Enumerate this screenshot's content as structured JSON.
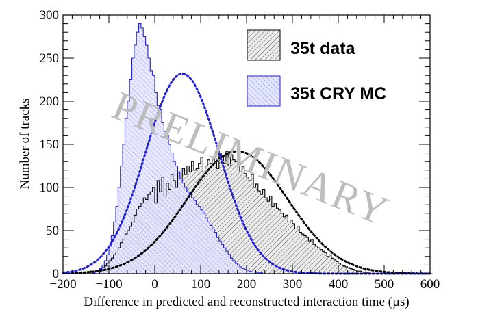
{
  "chart_data": {
    "type": "histogram",
    "xlabel": "Difference in predicted and reconstructed interaction time (µs)",
    "ylabel": "Number of tracks",
    "xlim": [
      -200,
      600
    ],
    "ylim": [
      0,
      300
    ],
    "x_ticks": [
      -200,
      -100,
      0,
      100,
      200,
      300,
      400,
      500,
      600
    ],
    "x_tick_labels": [
      "−200",
      "−100",
      "0",
      "100",
      "200",
      "300",
      "400",
      "500",
      "600"
    ],
    "y_ticks": [
      0,
      50,
      100,
      150,
      200,
      250,
      300
    ],
    "bin_start": -200,
    "bin_width": 5,
    "watermark": "PRELIMINARY",
    "legend": {
      "position": "top-right",
      "entries": [
        "35t data",
        "35t CRY MC"
      ]
    },
    "colors": {
      "data": "#000000",
      "mc": "#1f1fd6",
      "mc_fill": "#dfe0ff",
      "data_fill": "#d9d9d9"
    },
    "series": [
      {
        "name": "35t data",
        "values": [
          0,
          0,
          0,
          0,
          0,
          0,
          0,
          0,
          0,
          0,
          0,
          0,
          0,
          1,
          2,
          3,
          5,
          7,
          9,
          12,
          15,
          18,
          22,
          25,
          30,
          36,
          40,
          46,
          50,
          55,
          60,
          68,
          75,
          78,
          82,
          88,
          86,
          92,
          95,
          100,
          82,
          108,
          95,
          112,
          90,
          105,
          98,
          115,
          108,
          100,
          118,
          110,
          122,
          115,
          125,
          118,
          130,
          120,
          122,
          128,
          135,
          118,
          125,
          132,
          128,
          135,
          130,
          122,
          140,
          135,
          128,
          142,
          125,
          138,
          132,
          130,
          128,
          118,
          124,
          116,
          112,
          108,
          115,
          100,
          104,
          96,
          92,
          98,
          88,
          84,
          90,
          78,
          82,
          76,
          74,
          70,
          66,
          68,
          60,
          62,
          58,
          52,
          55,
          48,
          46,
          44,
          42,
          38,
          40,
          34,
          32,
          30,
          28,
          26,
          24,
          20,
          22,
          18,
          16,
          14,
          12,
          10,
          9,
          8,
          7,
          6,
          5,
          4,
          3,
          3,
          2,
          1,
          1,
          1,
          0,
          0,
          0,
          0,
          0,
          0,
          0,
          0,
          0,
          0,
          0,
          0,
          0,
          0,
          0,
          0,
          0,
          0,
          0,
          0,
          0,
          0,
          0,
          0,
          0,
          0,
          0
        ],
        "fit": {
          "mean": 180,
          "sigma": 110,
          "amplitude": 142
        }
      },
      {
        "name": "35t CRY MC",
        "values": [
          0,
          0,
          0,
          0,
          0,
          0,
          0,
          0,
          0,
          0,
          0,
          0,
          0,
          1,
          2,
          4,
          6,
          10,
          15,
          22,
          32,
          44,
          60,
          78,
          100,
          125,
          150,
          180,
          200,
          225,
          250,
          265,
          280,
          290,
          285,
          275,
          265,
          250,
          235,
          230,
          210,
          195,
          190,
          175,
          165,
          160,
          150,
          140,
          130,
          125,
          118,
          110,
          105,
          100,
          95,
          92,
          88,
          85,
          80,
          78,
          74,
          70,
          65,
          60,
          56,
          52,
          48,
          42,
          38,
          34,
          30,
          26,
          22,
          18,
          15,
          12,
          10,
          8,
          6,
          5,
          4,
          3,
          2,
          2,
          1,
          1,
          1,
          0,
          0,
          0,
          0,
          0,
          0,
          0,
          0,
          0,
          0,
          0,
          0,
          0,
          0,
          0,
          0,
          0,
          0,
          0,
          0,
          0,
          0,
          0,
          0,
          0,
          0,
          0,
          0,
          0,
          0,
          0,
          0,
          0,
          0,
          0,
          0,
          0,
          0,
          0,
          0,
          0,
          0,
          0,
          0,
          0,
          0,
          0,
          0,
          0,
          0,
          0,
          0,
          0,
          0,
          0,
          0,
          0,
          0,
          0,
          0,
          0,
          0,
          0,
          0,
          0,
          0,
          0,
          0,
          0,
          0,
          0,
          0,
          0,
          0
        ],
        "fit": {
          "mean": 60,
          "sigma": 80,
          "amplitude": 232
        }
      }
    ]
  }
}
